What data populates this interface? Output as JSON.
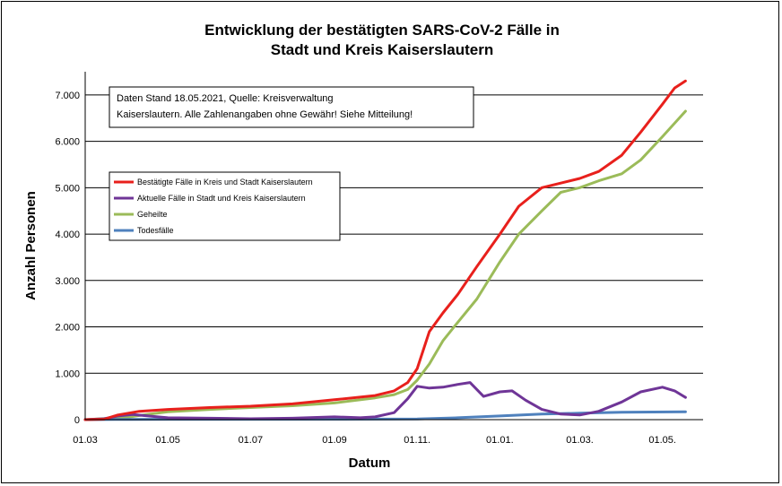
{
  "chart_data": {
    "type": "line",
    "title_lines": [
      "Entwicklung der bestätigten SARS-CoV-2 Fälle in",
      "Stadt und Kreis Kaiserslautern"
    ],
    "xlabel": "Datum",
    "ylabel": "Anzahl Personen",
    "ylim": [
      0,
      7500
    ],
    "yticks": [
      0,
      1000,
      2000,
      3000,
      4000,
      5000,
      6000,
      7000
    ],
    "ytick_labels": [
      "0",
      "1.000",
      "2.000",
      "3.000",
      "4.000",
      "5.000",
      "6.000",
      "7.000"
    ],
    "xlim": [
      "2020-03-01",
      "2021-05-31"
    ],
    "xticks": [
      "2020-03-01",
      "2020-05-01",
      "2020-07-01",
      "2020-09-01",
      "2020-11-01",
      "2021-01-01",
      "2021-03-01",
      "2021-05-01"
    ],
    "xtick_labels": [
      "01.03",
      "01.05",
      "01.07",
      "01.09",
      "01.11.",
      "01.01.",
      "01.03.",
      "01.05."
    ],
    "grid": "horizontal",
    "legend_position": "left",
    "note_lines": [
      "Daten Stand 18.05.2021, Quelle: Kreisverwaltung",
      "Kaiserslautern. Alle Zahlenangaben ohne Gewähr! Siehe Mitteilung!"
    ],
    "series": [
      {
        "name": "Bestätigte Fälle in Kreis und Stadt Kaiserslautern",
        "color": "#e8201c",
        "points": [
          [
            "2020-03-01",
            0
          ],
          [
            "2020-03-15",
            10
          ],
          [
            "2020-03-25",
            100
          ],
          [
            "2020-04-10",
            180
          ],
          [
            "2020-05-01",
            220
          ],
          [
            "2020-06-01",
            260
          ],
          [
            "2020-07-01",
            290
          ],
          [
            "2020-08-01",
            340
          ],
          [
            "2020-09-01",
            430
          ],
          [
            "2020-10-01",
            520
          ],
          [
            "2020-10-15",
            620
          ],
          [
            "2020-10-25",
            800
          ],
          [
            "2020-11-01",
            1100
          ],
          [
            "2020-11-10",
            1900
          ],
          [
            "2020-11-20",
            2300
          ],
          [
            "2020-12-01",
            2700
          ],
          [
            "2020-12-15",
            3300
          ],
          [
            "2021-01-01",
            4000
          ],
          [
            "2021-01-15",
            4600
          ],
          [
            "2021-02-01",
            5000
          ],
          [
            "2021-02-15",
            5100
          ],
          [
            "2021-03-01",
            5200
          ],
          [
            "2021-03-15",
            5350
          ],
          [
            "2021-04-01",
            5700
          ],
          [
            "2021-04-15",
            6200
          ],
          [
            "2021-05-01",
            6800
          ],
          [
            "2021-05-10",
            7150
          ],
          [
            "2021-05-18",
            7300
          ]
        ]
      },
      {
        "name": "Aktuelle Fälle in Stadt und Kreis Kaiserslautern",
        "color": "#6f3597",
        "points": [
          [
            "2020-03-01",
            0
          ],
          [
            "2020-03-15",
            20
          ],
          [
            "2020-03-25",
            80
          ],
          [
            "2020-04-05",
            110
          ],
          [
            "2020-04-20",
            70
          ],
          [
            "2020-05-01",
            40
          ],
          [
            "2020-06-01",
            30
          ],
          [
            "2020-07-01",
            20
          ],
          [
            "2020-08-01",
            30
          ],
          [
            "2020-09-01",
            60
          ],
          [
            "2020-09-20",
            40
          ],
          [
            "2020-10-01",
            60
          ],
          [
            "2020-10-15",
            150
          ],
          [
            "2020-10-25",
            450
          ],
          [
            "2020-11-01",
            720
          ],
          [
            "2020-11-10",
            680
          ],
          [
            "2020-11-20",
            700
          ],
          [
            "2020-12-01",
            760
          ],
          [
            "2020-12-10",
            800
          ],
          [
            "2020-12-20",
            500
          ],
          [
            "2021-01-01",
            600
          ],
          [
            "2021-01-10",
            620
          ],
          [
            "2021-01-20",
            420
          ],
          [
            "2021-02-01",
            220
          ],
          [
            "2021-02-15",
            120
          ],
          [
            "2021-03-01",
            100
          ],
          [
            "2021-03-15",
            180
          ],
          [
            "2021-04-01",
            380
          ],
          [
            "2021-04-15",
            600
          ],
          [
            "2021-05-01",
            700
          ],
          [
            "2021-05-10",
            620
          ],
          [
            "2021-05-18",
            480
          ]
        ]
      },
      {
        "name": "Geheilte",
        "color": "#9bbb59",
        "points": [
          [
            "2020-03-01",
            0
          ],
          [
            "2020-04-01",
            50
          ],
          [
            "2020-04-15",
            110
          ],
          [
            "2020-05-01",
            170
          ],
          [
            "2020-06-01",
            220
          ],
          [
            "2020-07-01",
            260
          ],
          [
            "2020-08-01",
            300
          ],
          [
            "2020-09-01",
            360
          ],
          [
            "2020-10-01",
            470
          ],
          [
            "2020-10-15",
            540
          ],
          [
            "2020-10-25",
            650
          ],
          [
            "2020-11-01",
            850
          ],
          [
            "2020-11-10",
            1200
          ],
          [
            "2020-11-20",
            1700
          ],
          [
            "2020-12-01",
            2100
          ],
          [
            "2020-12-15",
            2600
          ],
          [
            "2021-01-01",
            3400
          ],
          [
            "2021-01-15",
            4000
          ],
          [
            "2021-02-01",
            4500
          ],
          [
            "2021-02-15",
            4900
          ],
          [
            "2021-03-01",
            5000
          ],
          [
            "2021-03-15",
            5150
          ],
          [
            "2021-04-01",
            5300
          ],
          [
            "2021-04-15",
            5600
          ],
          [
            "2021-05-01",
            6100
          ],
          [
            "2021-05-18",
            6650
          ]
        ]
      },
      {
        "name": "Todesfälle",
        "color": "#4f81bd",
        "points": [
          [
            "2020-03-01",
            0
          ],
          [
            "2020-04-01",
            5
          ],
          [
            "2020-05-01",
            8
          ],
          [
            "2020-09-01",
            10
          ],
          [
            "2020-11-01",
            15
          ],
          [
            "2020-12-01",
            40
          ],
          [
            "2021-01-01",
            80
          ],
          [
            "2021-02-01",
            120
          ],
          [
            "2021-03-01",
            140
          ],
          [
            "2021-04-01",
            160
          ],
          [
            "2021-05-18",
            170
          ]
        ]
      }
    ]
  }
}
